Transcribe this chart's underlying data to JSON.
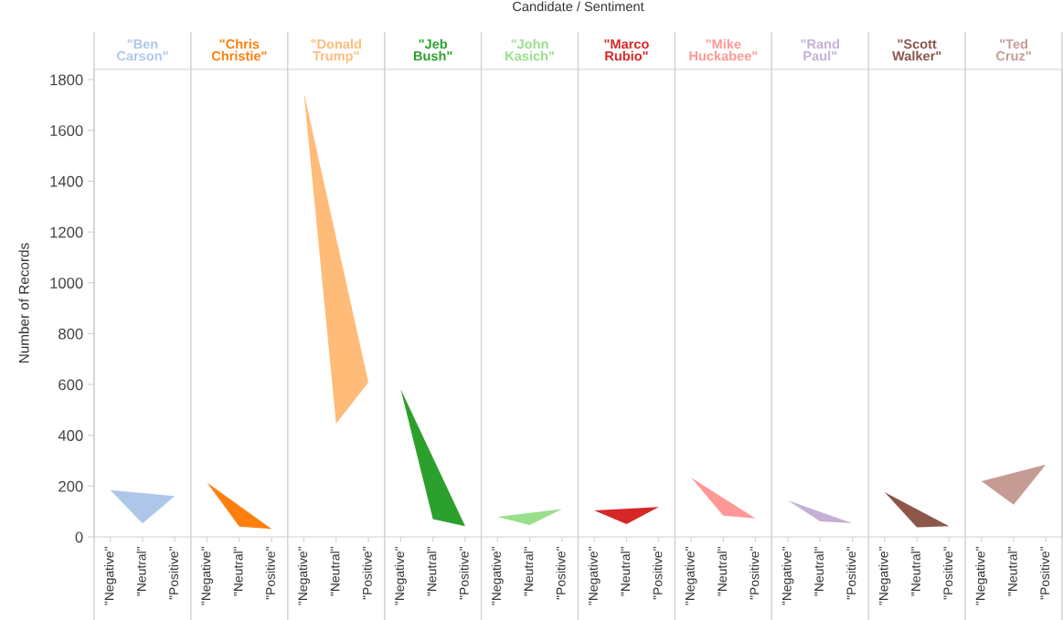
{
  "chart_data": {
    "type": "area",
    "title": "Candidate / Sentiment",
    "ylabel": "Number of Records",
    "categories": [
      "\"Negative\"",
      "\"Neutral\"",
      "\"Positive\"",
      "\"Negative\"",
      "\"Neutral\"",
      "\"Positive\"",
      "\"Negative\"",
      "\"Neutral\"",
      "\"Positive\"",
      "\"Negative\"",
      "\"Neutral\"",
      "\"Positive\"",
      "\"Negative\"",
      "\"Neutral\"",
      "\"Positive\"",
      "\"Negative\"",
      "\"Neutral\"",
      "\"Positive\"",
      "\"Negative\"",
      "\"Neutral\"",
      "\"Positive\"",
      "\"Negative\"",
      "\"Neutral\"",
      "\"Positive\"",
      "\"Negative\"",
      "\"Neutral\"",
      "\"Positive\"",
      "\"Negative\"",
      "\"Neutral\"",
      "\"Positive\""
    ],
    "ylim": [
      0,
      1840
    ],
    "yticks": [
      0,
      200,
      400,
      600,
      800,
      1000,
      1200,
      1400,
      1600,
      1800
    ],
    "series": [
      {
        "name": "\"Ben Carson\"",
        "color": "#aec7e8",
        "values": [
          184,
          53,
          161,
          null,
          null,
          null,
          null,
          null,
          null,
          null,
          null,
          null,
          null,
          null,
          null,
          null,
          null,
          null,
          null,
          null,
          null,
          null,
          null,
          null,
          null,
          null,
          null,
          null,
          null,
          null
        ]
      },
      {
        "name": "\"Chris Christie\"",
        "color": "#ff7f0e",
        "values": [
          null,
          null,
          null,
          214,
          40,
          31,
          null,
          null,
          null,
          null,
          null,
          null,
          null,
          null,
          null,
          null,
          null,
          null,
          null,
          null,
          null,
          null,
          null,
          null,
          null,
          null,
          null,
          null,
          null,
          null
        ]
      },
      {
        "name": "\"Donald Trump\"",
        "color": "#ffbb78",
        "values": [
          null,
          null,
          null,
          null,
          null,
          null,
          1749,
          446,
          608,
          null,
          null,
          null,
          null,
          null,
          null,
          null,
          null,
          null,
          null,
          null,
          null,
          null,
          null,
          null,
          null,
          null,
          null,
          null,
          null,
          null
        ]
      },
      {
        "name": "\"Jeb Bush\"",
        "color": "#2ca02c",
        "values": [
          null,
          null,
          null,
          null,
          null,
          null,
          null,
          null,
          null,
          582,
          70,
          42,
          null,
          null,
          null,
          null,
          null,
          null,
          null,
          null,
          null,
          null,
          null,
          null,
          null,
          null,
          null,
          null,
          null,
          null
        ]
      },
      {
        "name": "\"John Kasich\"",
        "color": "#98df8a",
        "values": [
          null,
          null,
          null,
          null,
          null,
          null,
          null,
          null,
          null,
          null,
          null,
          null,
          79,
          47,
          110,
          null,
          null,
          null,
          null,
          null,
          null,
          null,
          null,
          null,
          null,
          null,
          null,
          null,
          null,
          null
        ]
      },
      {
        "name": "\"Marco Rubio\"",
        "color": "#d62728",
        "values": [
          null,
          null,
          null,
          null,
          null,
          null,
          null,
          null,
          null,
          null,
          null,
          null,
          null,
          null,
          null,
          104,
          50,
          118,
          null,
          null,
          null,
          null,
          null,
          null,
          null,
          null,
          null,
          null,
          null,
          null
        ]
      },
      {
        "name": "\"Mike Huckabee\"",
        "color": "#ff9896",
        "values": [
          null,
          null,
          null,
          null,
          null,
          null,
          null,
          null,
          null,
          null,
          null,
          null,
          null,
          null,
          null,
          null,
          null,
          null,
          234,
          84,
          73,
          null,
          null,
          null,
          null,
          null,
          null,
          null,
          null,
          null
        ]
      },
      {
        "name": "\"Rand Paul\"",
        "color": "#c5b0d5",
        "values": [
          null,
          null,
          null,
          null,
          null,
          null,
          null,
          null,
          null,
          null,
          null,
          null,
          null,
          null,
          null,
          null,
          null,
          null,
          null,
          null,
          null,
          144,
          61,
          54,
          null,
          null,
          null,
          null,
          null,
          null
        ]
      },
      {
        "name": "\"Scott Walker\"",
        "color": "#8c564b",
        "values": [
          null,
          null,
          null,
          null,
          null,
          null,
          null,
          null,
          null,
          null,
          null,
          null,
          null,
          null,
          null,
          null,
          null,
          null,
          null,
          null,
          null,
          null,
          null,
          null,
          176,
          38,
          42,
          null,
          null,
          null
        ]
      },
      {
        "name": "\"Ted Cruz\"",
        "color": "#c49c94",
        "values": [
          null,
          null,
          null,
          null,
          null,
          null,
          null,
          null,
          null,
          null,
          null,
          null,
          null,
          null,
          null,
          null,
          null,
          null,
          null,
          null,
          null,
          null,
          null,
          null,
          null,
          null,
          null,
          219,
          127,
          285
        ]
      }
    ]
  }
}
